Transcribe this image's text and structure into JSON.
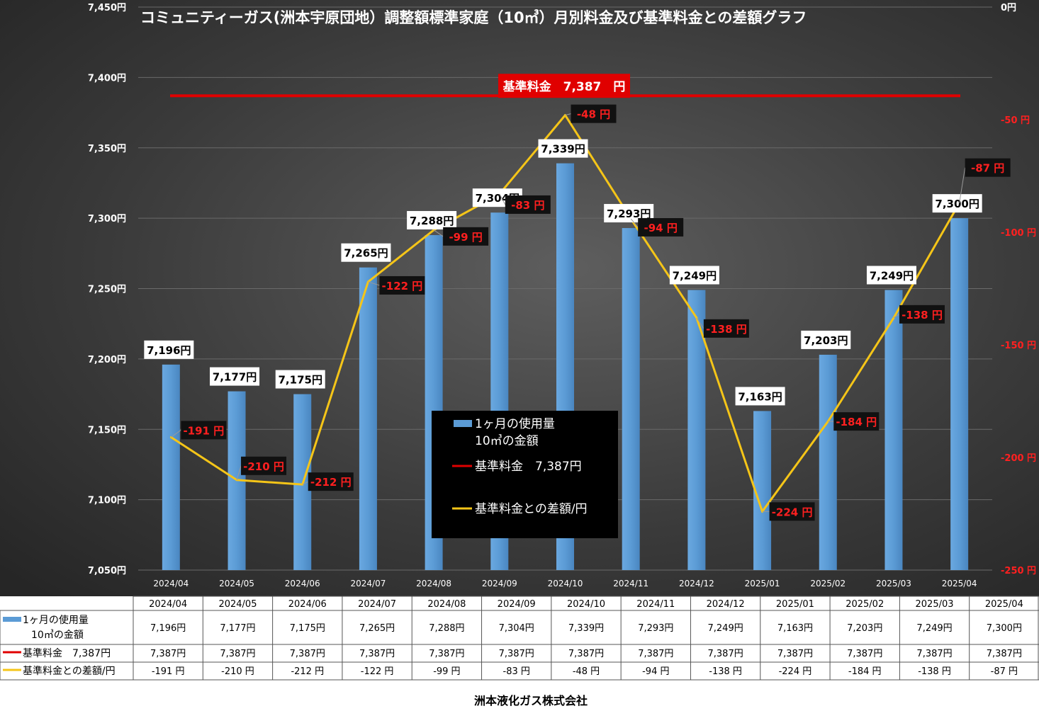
{
  "chart_data": {
    "type": "bar",
    "title": "コミュニティーガス(洲本宇原団地）調整額標準家庭（10㎥）月別料金及び基準料金との差額グラフ",
    "categories": [
      "2024/04",
      "2024/05",
      "2024/06",
      "2024/07",
      "2024/08",
      "2024/09",
      "2024/10",
      "2024/11",
      "2024/12",
      "2025/01",
      "2025/02",
      "2025/03",
      "2025/04"
    ],
    "series": [
      {
        "name": "1ヶ月の使用量 10㎥の金額",
        "type": "bar",
        "axis": "left",
        "values": [
          7196,
          7177,
          7175,
          7265,
          7288,
          7304,
          7339,
          7293,
          7249,
          7163,
          7203,
          7249,
          7300
        ],
        "labels": [
          "7,196円",
          "7,177円",
          "7,175円",
          "7,265円",
          "7,288円",
          "7,304円",
          "7,339円",
          "7,293円",
          "7,249円",
          "7,163円",
          "7,203円",
          "7,249円",
          "7,300円"
        ]
      },
      {
        "name": "基準料金　7,387円",
        "type": "line",
        "axis": "left",
        "value": 7387,
        "values": [
          7387,
          7387,
          7387,
          7387,
          7387,
          7387,
          7387,
          7387,
          7387,
          7387,
          7387,
          7387,
          7387
        ],
        "labels": [
          "7,387円",
          "7,387円",
          "7,387円",
          "7,387円",
          "7,387円",
          "7,387円",
          "7,387円",
          "7,387円",
          "7,387円",
          "7,387円",
          "7,387円",
          "7,387円",
          "7,387円"
        ]
      },
      {
        "name": "基準料金との差額/円",
        "type": "line",
        "axis": "right",
        "values": [
          -191,
          -210,
          -212,
          -122,
          -99,
          -83,
          -48,
          -94,
          -138,
          -224,
          -184,
          -138,
          -87
        ],
        "labels": [
          "-191 円",
          "-210 円",
          "-212 円",
          "-122 円",
          "-99 円",
          "-83 円",
          "-48 円",
          "-94 円",
          "-138 円",
          "-224 円",
          "-184 円",
          "-138 円",
          "-87 円"
        ]
      }
    ],
    "y_left": {
      "min": 7050,
      "max": 7450,
      "ticks": [
        7050,
        7100,
        7150,
        7200,
        7250,
        7300,
        7350,
        7400,
        7450
      ],
      "tick_labels": [
        "7,050円",
        "7,100円",
        "7,150円",
        "7,200円",
        "7,250円",
        "7,300円",
        "7,350円",
        "7,400円",
        "7,450円"
      ]
    },
    "y_right": {
      "min": -250,
      "max": 0,
      "ticks": [
        -250,
        -200,
        -150,
        -100,
        -50,
        0
      ],
      "tick_labels": [
        "-250 円",
        "-200 円",
        "-150 円",
        "-100 円",
        "-50 円",
        "0円"
      ]
    },
    "base_label": "基準料金　7,387　円",
    "legend": {
      "placement": "center",
      "items": [
        "1ヶ月の使用量",
        "10㎥の金額",
        "基準料金　7,387円",
        "基準料金との差額/円"
      ]
    },
    "table": {
      "row_labels": [
        [
          "1ヶ月の使用量",
          "10㎥の金額"
        ],
        [
          "基準料金　7,387円"
        ],
        [
          "基準料金との差額/円"
        ]
      ]
    },
    "footer": "洲本液化ガス株式会社",
    "colors": {
      "bar": "#5b9bd5",
      "base": "#e00000",
      "diff": "#f5c518",
      "bg_top": "#2b2b2b",
      "bg_mid": "#555555"
    }
  }
}
